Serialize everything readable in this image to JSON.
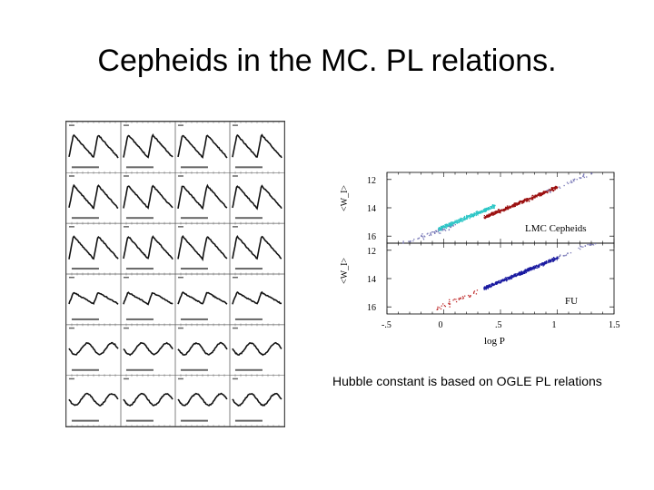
{
  "slide": {
    "title": "Cepheids in the MC. PL relations.",
    "caption": "Hubble constant is based on OGLE PL relations"
  },
  "chart_data": [
    {
      "type": "scatter",
      "panel": "upper",
      "label": "LMC Cepheids",
      "xlabel": "log P",
      "ylabel": "<W_I>",
      "xlim": [
        -0.5,
        1.5
      ],
      "ylim": [
        16.5,
        11.5
      ],
      "yticks": [
        "12",
        "14",
        "16"
      ],
      "xticks": [
        "-.5",
        "0",
        ".5",
        "1",
        "1.5"
      ],
      "series_colors": [
        "#2cc6c6",
        "#9b0f0f",
        "#7a7ab8"
      ]
    },
    {
      "type": "scatter",
      "panel": "lower",
      "label": "FU",
      "xlabel": "log P",
      "ylabel": "<W_I>",
      "xlim": [
        -0.5,
        1.5
      ],
      "ylim": [
        16.5,
        11.5
      ],
      "yticks": [
        "12",
        "14",
        "16"
      ],
      "xticks": [
        "-.5",
        "0",
        ".5",
        "1",
        "1.5"
      ],
      "series_colors": [
        "#1a1aa0",
        "#c03030",
        "#7a7ab8"
      ]
    }
  ]
}
